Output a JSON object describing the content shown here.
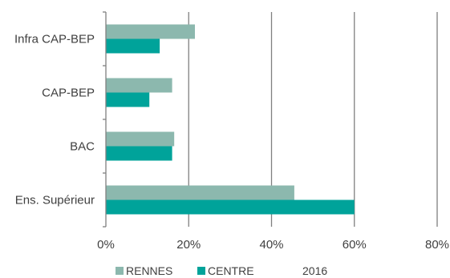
{
  "chart_data": {
    "type": "bar",
    "orientation": "horizontal",
    "categories": [
      "Infra CAP-BEP",
      "CAP-BEP",
      "BAC",
      "Ens. Supérieur"
    ],
    "series": [
      {
        "name": "RENNES",
        "values": [
          21.5,
          16,
          16.5,
          45.5
        ],
        "color": "#8CB8AE"
      },
      {
        "name": "CENTRE",
        "values": [
          13,
          10.5,
          16,
          60
        ],
        "color": "#00A39A"
      }
    ],
    "xlim": [
      0,
      80
    ],
    "xticks": [
      0,
      20,
      40,
      60,
      80
    ],
    "tick_suffix": "%",
    "grid": true,
    "legend_position": "bottom",
    "legend_extra_text": "2016",
    "gridline_color": "#808080",
    "axis_color": "#808080"
  }
}
